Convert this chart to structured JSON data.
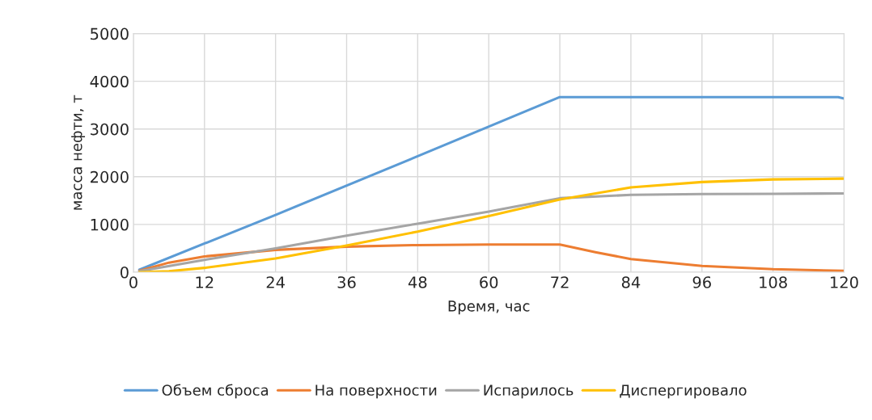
{
  "chart_data": {
    "type": "line",
    "xlabel": "Время, час",
    "ylabel": "масса нефти, т",
    "xlim": [
      0,
      120
    ],
    "xticks": [
      0,
      12,
      24,
      36,
      48,
      60,
      72,
      84,
      96,
      108,
      120
    ],
    "ylim": [
      0,
      5000
    ],
    "yticks": [
      0,
      1000,
      2000,
      3000,
      4000,
      5000
    ],
    "grid": true,
    "legend": "bottom",
    "line_style": "solid",
    "series": [
      {
        "name": "Объем сброса",
        "color": "#5b9bd5",
        "x": [
          1,
          24,
          48,
          72,
          96,
          119,
          120
        ],
        "values": [
          50,
          1200,
          2430,
          3670,
          3670,
          3670,
          3640
        ]
      },
      {
        "name": "На поверхности",
        "color": "#ed7d31",
        "x": [
          1,
          6,
          12,
          24,
          36,
          48,
          60,
          72,
          78,
          84,
          96,
          108,
          120
        ],
        "values": [
          30,
          200,
          330,
          467,
          535,
          568,
          580,
          580,
          420,
          275,
          130,
          62,
          28
        ]
      },
      {
        "name": "Испарилось",
        "color": "#a5a5a5",
        "x": [
          1,
          12,
          24,
          36,
          48,
          60,
          72,
          84,
          96,
          108,
          120
        ],
        "values": [
          20,
          258,
          500,
          765,
          1017,
          1270,
          1550,
          1620,
          1636,
          1643,
          1650
        ]
      },
      {
        "name": "Диспергировало",
        "color": "#ffc000",
        "x": [
          1,
          6,
          12,
          24,
          36,
          48,
          60,
          72,
          84,
          96,
          108,
          120
        ],
        "values": [
          0,
          20,
          90,
          287,
          560,
          850,
          1175,
          1523,
          1776,
          1889,
          1944,
          1961
        ]
      }
    ]
  }
}
